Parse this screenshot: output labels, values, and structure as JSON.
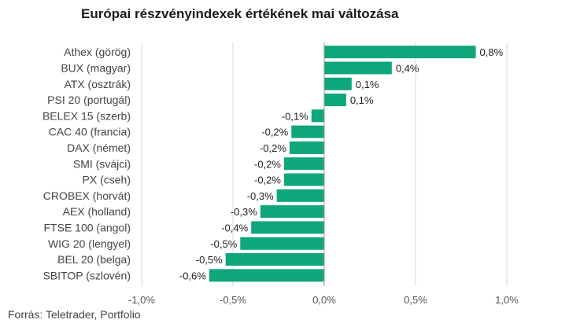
{
  "chart_data": {
    "type": "bar",
    "orientation": "horizontal",
    "title": "Európai részvényindexek értékének mai változása",
    "source": "Forrás: Teletrader, Portfolio",
    "categories": [
      "Athex (görög)",
      "BUX (magyar)",
      "ATX (osztrák)",
      "PSI 20 (portugál)",
      "BELEX 15 (szerb)",
      "CAC 40 (francia)",
      "DAX (német)",
      "SMI (svájci)",
      "PX (cseh)",
      "CROBEX (horvát)",
      "AEX (holland)",
      "FTSE 100 (angol)",
      "WIG 20 (lengyel)",
      "BEL 20 (belga)",
      "SBITOP (szlovén)"
    ],
    "values": [
      0.83,
      0.37,
      0.15,
      0.12,
      -0.07,
      -0.18,
      -0.19,
      -0.22,
      -0.22,
      -0.26,
      -0.35,
      -0.4,
      -0.46,
      -0.54,
      -0.63
    ],
    "data_labels": [
      "0,8%",
      "0,4%",
      "0,1%",
      "0,1%",
      "-0,1%",
      "-0,2%",
      "-0,2%",
      "-0,2%",
      "-0,2%",
      "-0,3%",
      "-0,3%",
      "-0,4%",
      "-0,5%",
      "-0,5%",
      "-0,6%"
    ],
    "xlim": [
      -1.0,
      1.0
    ],
    "xticks": [
      -1.0,
      -0.5,
      0.0,
      0.5,
      1.0
    ],
    "xtick_labels": [
      "-1,0%",
      "-0,5%",
      "0,0%",
      "0,5%",
      "1,0%"
    ],
    "grid": "vertical",
    "bar_color": "#0ea77c",
    "grid_color": "#d9d9d9",
    "axis_color": "#999999"
  }
}
